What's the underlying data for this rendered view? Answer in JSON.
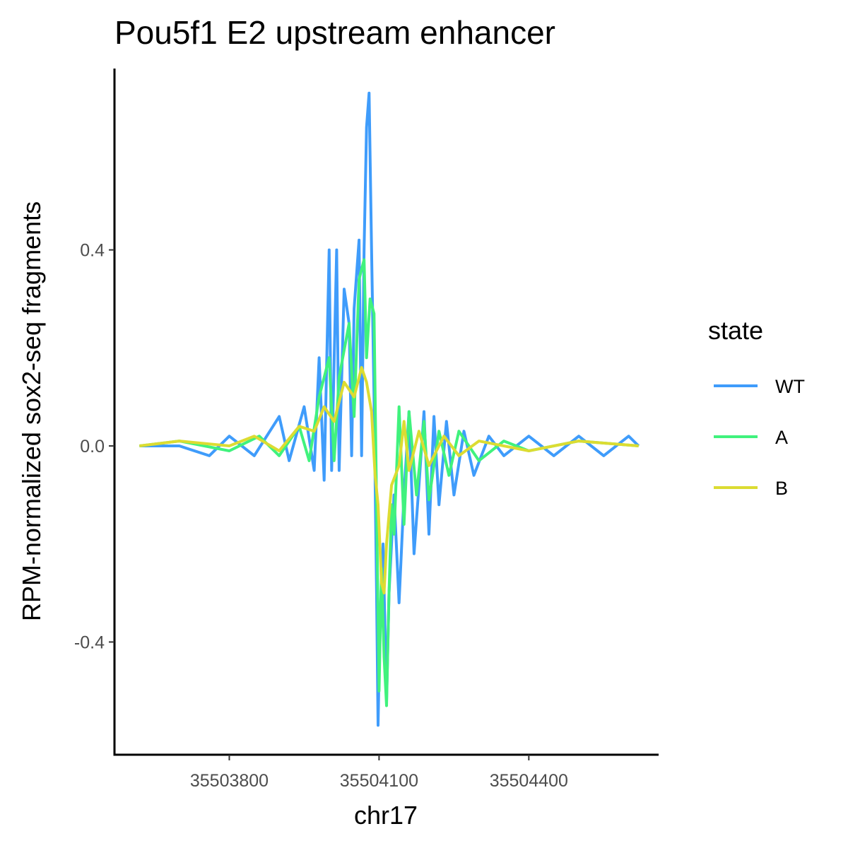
{
  "chart_data": {
    "type": "line",
    "title": "Pou5f1 E2 upstream enhancer",
    "xlabel": "chr17",
    "ylabel": "RPM-normalized sox2-seq fragments",
    "xlim": [
      35503570,
      35504660
    ],
    "ylim": [
      -0.63,
      0.77
    ],
    "x_ticks": [
      35503800,
      35504100,
      35504400
    ],
    "x_tick_labels": [
      "35503800",
      "35504100",
      "35504400"
    ],
    "y_ticks": [
      -0.4,
      0.0,
      0.4
    ],
    "y_tick_labels": [
      "-0.4",
      "0.0",
      "0.4"
    ],
    "grid": false,
    "legend": {
      "title": "state",
      "position": "right"
    },
    "series": [
      {
        "name": "WT",
        "color": "#3f9cfb",
        "points": [
          [
            35503620,
            0
          ],
          [
            35503700,
            0
          ],
          [
            35503760,
            -0.02
          ],
          [
            35503800,
            0.02
          ],
          [
            35503850,
            -0.02
          ],
          [
            35503900,
            0.06
          ],
          [
            35503920,
            -0.03
          ],
          [
            35503950,
            0.08
          ],
          [
            35503970,
            -0.05
          ],
          [
            35503980,
            0.18
          ],
          [
            35503990,
            -0.07
          ],
          [
            35504000,
            0.4
          ],
          [
            35504005,
            -0.05
          ],
          [
            35504015,
            0.4
          ],
          [
            35504020,
            -0.05
          ],
          [
            35504030,
            0.32
          ],
          [
            35504040,
            0.25
          ],
          [
            35504045,
            -0.02
          ],
          [
            35504050,
            0.28
          ],
          [
            35504060,
            0.42
          ],
          [
            35504065,
            -0.02
          ],
          [
            35504070,
            0.4
          ],
          [
            35504075,
            0.65
          ],
          [
            35504080,
            0.72
          ],
          [
            35504085,
            0.4
          ],
          [
            35504090,
            0.1
          ],
          [
            35504095,
            -0.3
          ],
          [
            35504098,
            -0.57
          ],
          [
            35504102,
            -0.35
          ],
          [
            35504108,
            -0.2
          ],
          [
            35504115,
            -0.52
          ],
          [
            35504120,
            -0.3
          ],
          [
            35504130,
            -0.1
          ],
          [
            35504140,
            -0.32
          ],
          [
            35504150,
            -0.1
          ],
          [
            35504160,
            0.07
          ],
          [
            35504170,
            -0.22
          ],
          [
            35504180,
            -0.08
          ],
          [
            35504190,
            0.07
          ],
          [
            35504200,
            -0.18
          ],
          [
            35504210,
            0.06
          ],
          [
            35504220,
            -0.12
          ],
          [
            35504235,
            0.05
          ],
          [
            35504250,
            -0.1
          ],
          [
            35504270,
            0.03
          ],
          [
            35504290,
            -0.06
          ],
          [
            35504320,
            0.02
          ],
          [
            35504350,
            -0.02
          ],
          [
            35504400,
            0.02
          ],
          [
            35504450,
            -0.02
          ],
          [
            35504500,
            0.02
          ],
          [
            35504550,
            -0.02
          ],
          [
            35504600,
            0.02
          ],
          [
            35504620,
            0
          ]
        ]
      },
      {
        "name": "A",
        "color": "#40f27d",
        "points": [
          [
            35503620,
            0
          ],
          [
            35503700,
            0.01
          ],
          [
            35503800,
            -0.01
          ],
          [
            35503860,
            0.02
          ],
          [
            35503900,
            -0.02
          ],
          [
            35503940,
            0.04
          ],
          [
            35503960,
            -0.03
          ],
          [
            35503980,
            0.1
          ],
          [
            35504000,
            0.18
          ],
          [
            35504010,
            -0.03
          ],
          [
            35504020,
            0.14
          ],
          [
            35504040,
            0.25
          ],
          [
            35504050,
            0.06
          ],
          [
            35504060,
            0.34
          ],
          [
            35504070,
            0.38
          ],
          [
            35504075,
            0.18
          ],
          [
            35504082,
            0.3
          ],
          [
            35504090,
            0.27
          ],
          [
            35504095,
            -0.12
          ],
          [
            35504100,
            -0.5
          ],
          [
            35504105,
            -0.25
          ],
          [
            35504110,
            -0.43
          ],
          [
            35504115,
            -0.53
          ],
          [
            35504120,
            -0.3
          ],
          [
            35504125,
            -0.12
          ],
          [
            35504130,
            -0.18
          ],
          [
            35504140,
            0.08
          ],
          [
            35504150,
            -0.16
          ],
          [
            35504160,
            0.07
          ],
          [
            35504175,
            -0.1
          ],
          [
            35504190,
            0.05
          ],
          [
            35504200,
            -0.11
          ],
          [
            35504220,
            0.03
          ],
          [
            35504240,
            -0.06
          ],
          [
            35504260,
            0.03
          ],
          [
            35504300,
            -0.03
          ],
          [
            35504350,
            0.01
          ],
          [
            35504400,
            -0.01
          ],
          [
            35504500,
            0.01
          ],
          [
            35504620,
            0
          ]
        ]
      },
      {
        "name": "B",
        "color": "#dcdc32",
        "points": [
          [
            35503620,
            0
          ],
          [
            35503700,
            0.01
          ],
          [
            35503800,
            0
          ],
          [
            35503850,
            0.02
          ],
          [
            35503900,
            -0.01
          ],
          [
            35503940,
            0.04
          ],
          [
            35503970,
            0.03
          ],
          [
            35503990,
            0.08
          ],
          [
            35504010,
            0.05
          ],
          [
            35504030,
            0.13
          ],
          [
            35504050,
            0.1
          ],
          [
            35504065,
            0.16
          ],
          [
            35504075,
            0.13
          ],
          [
            35504085,
            0.07
          ],
          [
            35504092,
            -0.06
          ],
          [
            35504098,
            -0.12
          ],
          [
            35504105,
            -0.28
          ],
          [
            35504110,
            -0.3
          ],
          [
            35504115,
            -0.2
          ],
          [
            35504125,
            -0.08
          ],
          [
            35504140,
            -0.04
          ],
          [
            35504150,
            0.05
          ],
          [
            35504160,
            -0.05
          ],
          [
            35504180,
            0.03
          ],
          [
            35504200,
            -0.04
          ],
          [
            35504230,
            0.02
          ],
          [
            35504260,
            -0.02
          ],
          [
            35504300,
            0.01
          ],
          [
            35504400,
            -0.01
          ],
          [
            35504500,
            0.01
          ],
          [
            35504620,
            0
          ]
        ]
      }
    ]
  }
}
